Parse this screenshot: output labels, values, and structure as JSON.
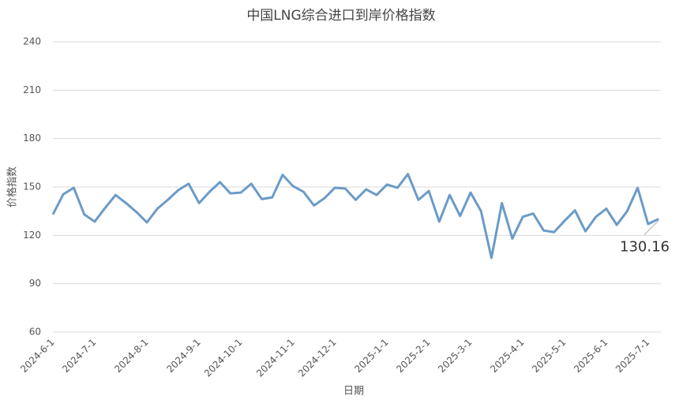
{
  "chart_data": {
    "type": "line",
    "title": "中国LNG综合进口到岸价格指数",
    "x_label": "日期",
    "y_label": "价格指数",
    "categories": [
      "2024-6-1",
      null,
      null,
      null,
      "2024-7-1",
      null,
      null,
      null,
      null,
      "2024-8-1",
      null,
      null,
      null,
      null,
      "2024-9-1",
      null,
      null,
      null,
      "2024-10-1",
      null,
      null,
      null,
      null,
      "2024-11-1",
      null,
      null,
      null,
      "2024-12-1",
      null,
      null,
      null,
      null,
      "2025-1-1",
      null,
      null,
      null,
      "2025-2-1",
      null,
      null,
      null,
      "2025-3-1",
      null,
      null,
      null,
      null,
      "2025-4-1",
      null,
      null,
      null,
      "2025-5-1",
      null,
      null,
      null,
      "2025-6-1",
      null,
      null,
      null,
      "2025-7-1",
      null
    ],
    "values": [
      133,
      145.5,
      149.5,
      133,
      128.5,
      137,
      145,
      140,
      134.5,
      128,
      136.5,
      142,
      148,
      152,
      140,
      147,
      153,
      146,
      146.5,
      152,
      142.5,
      143.5,
      157.5,
      150.5,
      147,
      138.5,
      143,
      149.5,
      149,
      142,
      148.5,
      145,
      151.5,
      149.5,
      158,
      142,
      147.5,
      128.5,
      145,
      132,
      146.5,
      135,
      106,
      140,
      118,
      131.5,
      133.5,
      123,
      122,
      129,
      135.5,
      122.5,
      131.5,
      136.5,
      126.5,
      135,
      149.5,
      127,
      130.16
    ],
    "color": "#6b9bc7",
    "ylim": [
      60,
      240
    ],
    "yticks": [
      60,
      90,
      120,
      150,
      180,
      210,
      240
    ],
    "grid": true
  }
}
